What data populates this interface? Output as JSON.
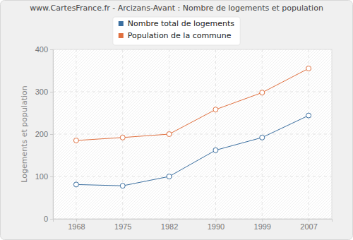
{
  "chart_data": {
    "type": "line",
    "title": "www.CartesFrance.fr - Arcizans-Avant : Nombre de logements et population",
    "y_label": "Logements et population",
    "categories": [
      "1968",
      "1975",
      "1982",
      "1990",
      "1999",
      "2007"
    ],
    "series": [
      {
        "name": "Nombre total de logements",
        "color": "#3b6fa0",
        "marker": "circle",
        "values": [
          81,
          78,
          100,
          162,
          192,
          244
        ]
      },
      {
        "name": "Population de la commune",
        "color": "#e0703f",
        "marker": "circle",
        "values": [
          185,
          192,
          200,
          258,
          298,
          355
        ]
      }
    ],
    "ylim": [
      0,
      400
    ],
    "yticks": [
      0,
      100,
      200,
      300,
      400
    ],
    "grid": true,
    "legend": "top"
  }
}
